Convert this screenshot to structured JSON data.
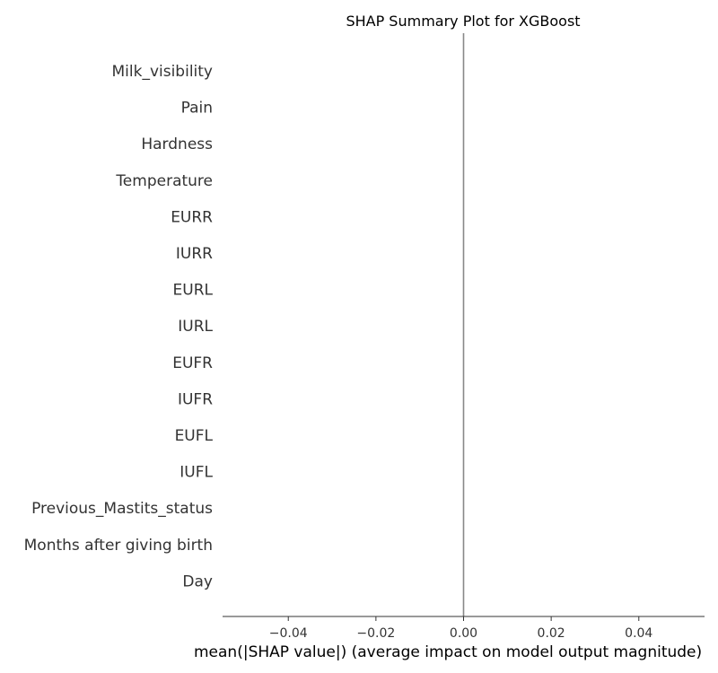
{
  "chart_data": {
    "type": "bar",
    "orientation": "horizontal",
    "title": "SHAP Summary Plot for XGBoost",
    "xlabel": "mean(|SHAP value|) (average impact on model output magnitude)",
    "ylabel": "",
    "categories": [
      "Milk_visibility",
      "Pain",
      "Hardness",
      "Temperature",
      "EURR",
      "IURR",
      "EURL",
      "IURL",
      "EUFR",
      "IUFR",
      "EUFL",
      "IUFL",
      "Previous_Mastits_status",
      "Months after giving birth",
      "Day"
    ],
    "values": [
      0,
      0,
      0,
      0,
      0,
      0,
      0,
      0,
      0,
      0,
      0,
      0,
      0,
      0,
      0
    ],
    "xlim": [
      -0.055,
      0.055
    ],
    "xticks": [
      -0.04,
      -0.02,
      0.0,
      0.02,
      0.04
    ],
    "xtick_labels": [
      "−0.04",
      "−0.02",
      "0.00",
      "0.02",
      "0.04"
    ],
    "zero_line": 0.0,
    "grid": false,
    "colors": {
      "bar": "#008bfb",
      "zero_line": "#888888",
      "axis": "#333333",
      "text": "#333333"
    }
  }
}
